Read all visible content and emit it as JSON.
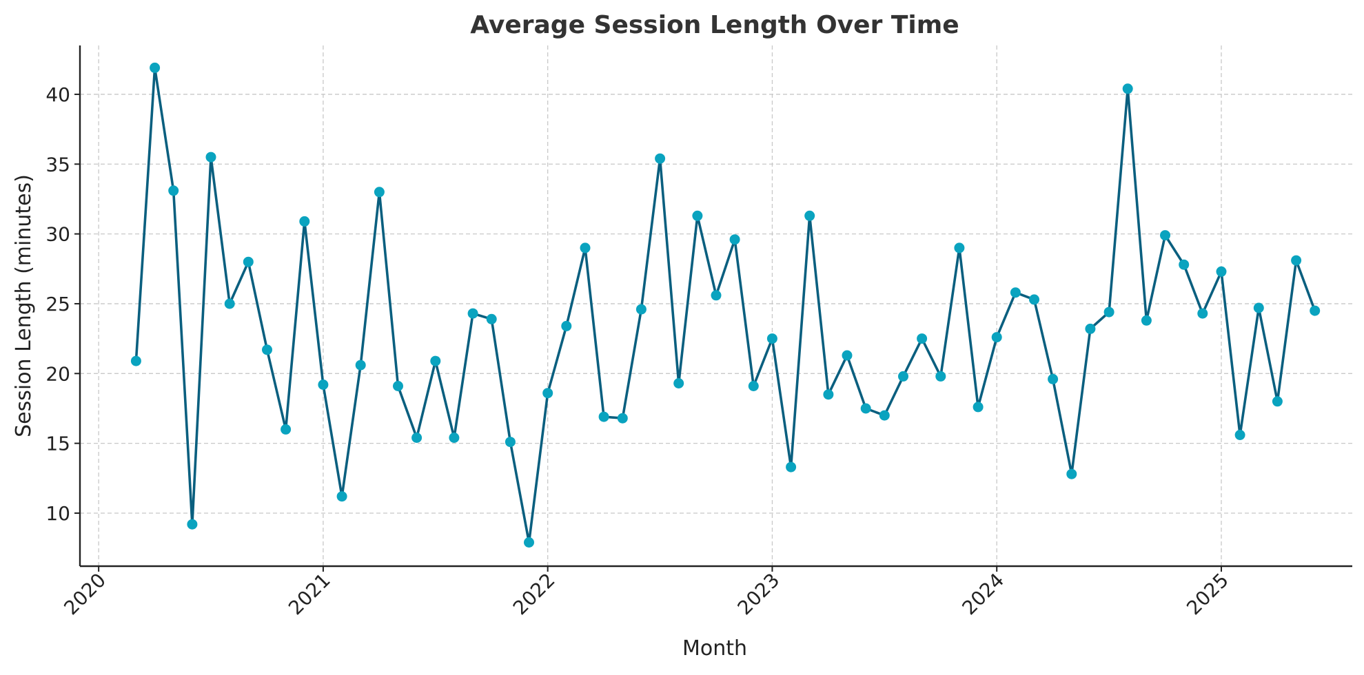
{
  "chart_data": {
    "type": "line",
    "title": "Average Session Length Over Time",
    "xlabel": "Month",
    "ylabel": "Session Length (minutes)",
    "x_ticks": [
      "2020",
      "2021",
      "2022",
      "2023",
      "2024",
      "2025"
    ],
    "y_ticks": [
      10,
      15,
      20,
      25,
      30,
      35,
      40
    ],
    "xlim": [
      "2019-12",
      "2025-08"
    ],
    "ylim": [
      6.2,
      43.5
    ],
    "grid": true,
    "line_color": "#0a5f7f",
    "marker_color": "#0aa3bf",
    "series": [
      {
        "x": [
          "2020-03",
          "2020-04",
          "2020-05",
          "2020-06",
          "2020-07",
          "2020-08",
          "2020-09",
          "2020-10",
          "2020-11",
          "2020-12",
          "2021-01",
          "2021-02",
          "2021-03",
          "2021-04",
          "2021-05",
          "2021-06",
          "2021-07",
          "2021-08",
          "2021-09",
          "2021-10",
          "2021-11",
          "2021-12",
          "2022-01",
          "2022-02",
          "2022-03",
          "2022-04",
          "2022-05",
          "2022-06",
          "2022-07",
          "2022-08",
          "2022-09",
          "2022-10",
          "2022-11",
          "2022-12",
          "2023-01",
          "2023-02",
          "2023-03",
          "2023-04",
          "2023-05",
          "2023-06",
          "2023-07",
          "2023-08",
          "2023-09",
          "2023-10",
          "2023-11",
          "2023-12",
          "2024-01",
          "2024-02",
          "2024-03",
          "2024-04",
          "2024-05",
          "2024-06",
          "2024-07",
          "2024-08",
          "2024-09",
          "2024-10",
          "2024-11",
          "2024-12",
          "2025-01",
          "2025-02",
          "2025-03",
          "2025-04",
          "2025-05",
          "2025-06"
        ],
        "values": [
          20.9,
          41.9,
          33.1,
          9.2,
          35.5,
          25.0,
          28.0,
          21.7,
          16.0,
          30.9,
          19.2,
          11.2,
          20.6,
          33.0,
          19.1,
          15.4,
          20.9,
          15.4,
          24.3,
          23.9,
          15.1,
          7.9,
          18.6,
          23.4,
          29.0,
          16.9,
          16.8,
          24.6,
          35.4,
          19.3,
          31.3,
          25.6,
          29.6,
          19.1,
          22.5,
          13.3,
          31.3,
          18.5,
          21.3,
          17.5,
          17.0,
          19.8,
          22.5,
          19.8,
          29.0,
          17.6,
          22.6,
          25.8,
          25.3,
          19.6,
          12.8,
          23.2,
          24.4,
          40.4,
          23.8,
          29.9,
          27.8,
          24.3,
          27.3,
          15.6,
          24.7,
          18.0,
          28.1,
          24.5
        ]
      }
    ]
  }
}
